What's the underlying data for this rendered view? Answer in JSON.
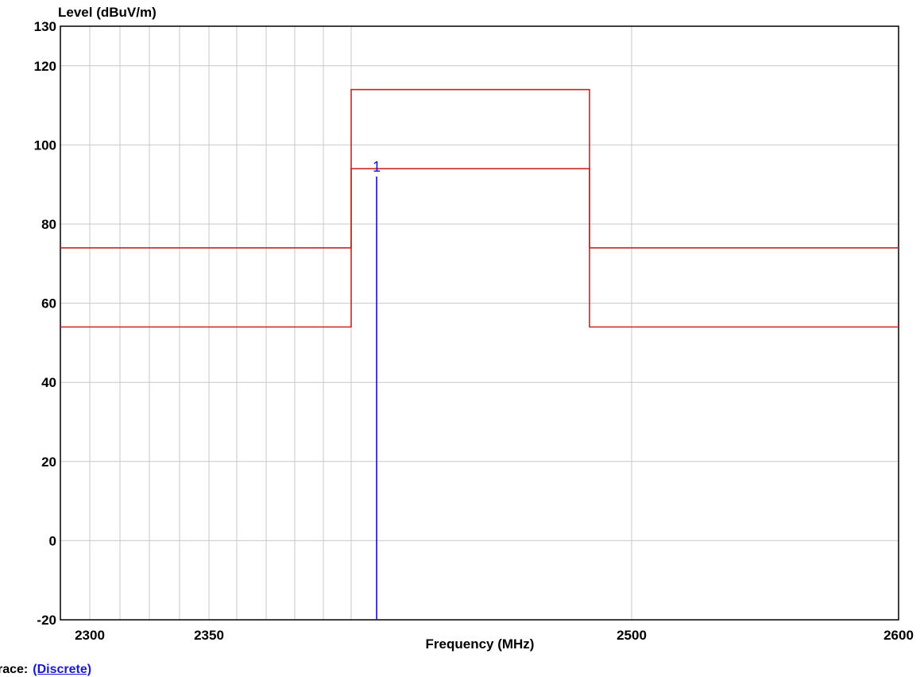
{
  "chart_data": {
    "type": "line",
    "title": "",
    "ylabel": "Level (dBuV/m)",
    "xlabel": "Frequency (MHz)",
    "ylim": [
      -20,
      130
    ],
    "y_ticks": [
      -20,
      0,
      20,
      40,
      60,
      80,
      100,
      120,
      130
    ],
    "x_tick_labels": [
      {
        "value": 2300,
        "label": "2300"
      },
      {
        "value": 2350,
        "label": "2350"
      },
      {
        "value": 2500,
        "label": "2500"
      },
      {
        "value": 2600,
        "label": "2600"
      }
    ],
    "grid": true,
    "limit_lines": [
      {
        "color": "#cc2222",
        "points": [
          [
            2290,
            74
          ],
          [
            2390,
            74
          ],
          [
            2390,
            114
          ],
          [
            2483.5,
            114
          ],
          [
            2483.5,
            74
          ],
          [
            2600,
            74
          ]
        ]
      },
      {
        "color": "#cc2222",
        "points": [
          [
            2290,
            54
          ],
          [
            2390,
            54
          ],
          [
            2390,
            94
          ],
          [
            2483.5,
            94
          ],
          [
            2483.5,
            54
          ],
          [
            2600,
            54
          ]
        ]
      }
    ],
    "markers": [
      {
        "label": "1",
        "x": 2400,
        "y": 92,
        "color": "#1010c0"
      }
    ]
  },
  "footer": {
    "label": "race:",
    "value": "(Discrete)"
  }
}
